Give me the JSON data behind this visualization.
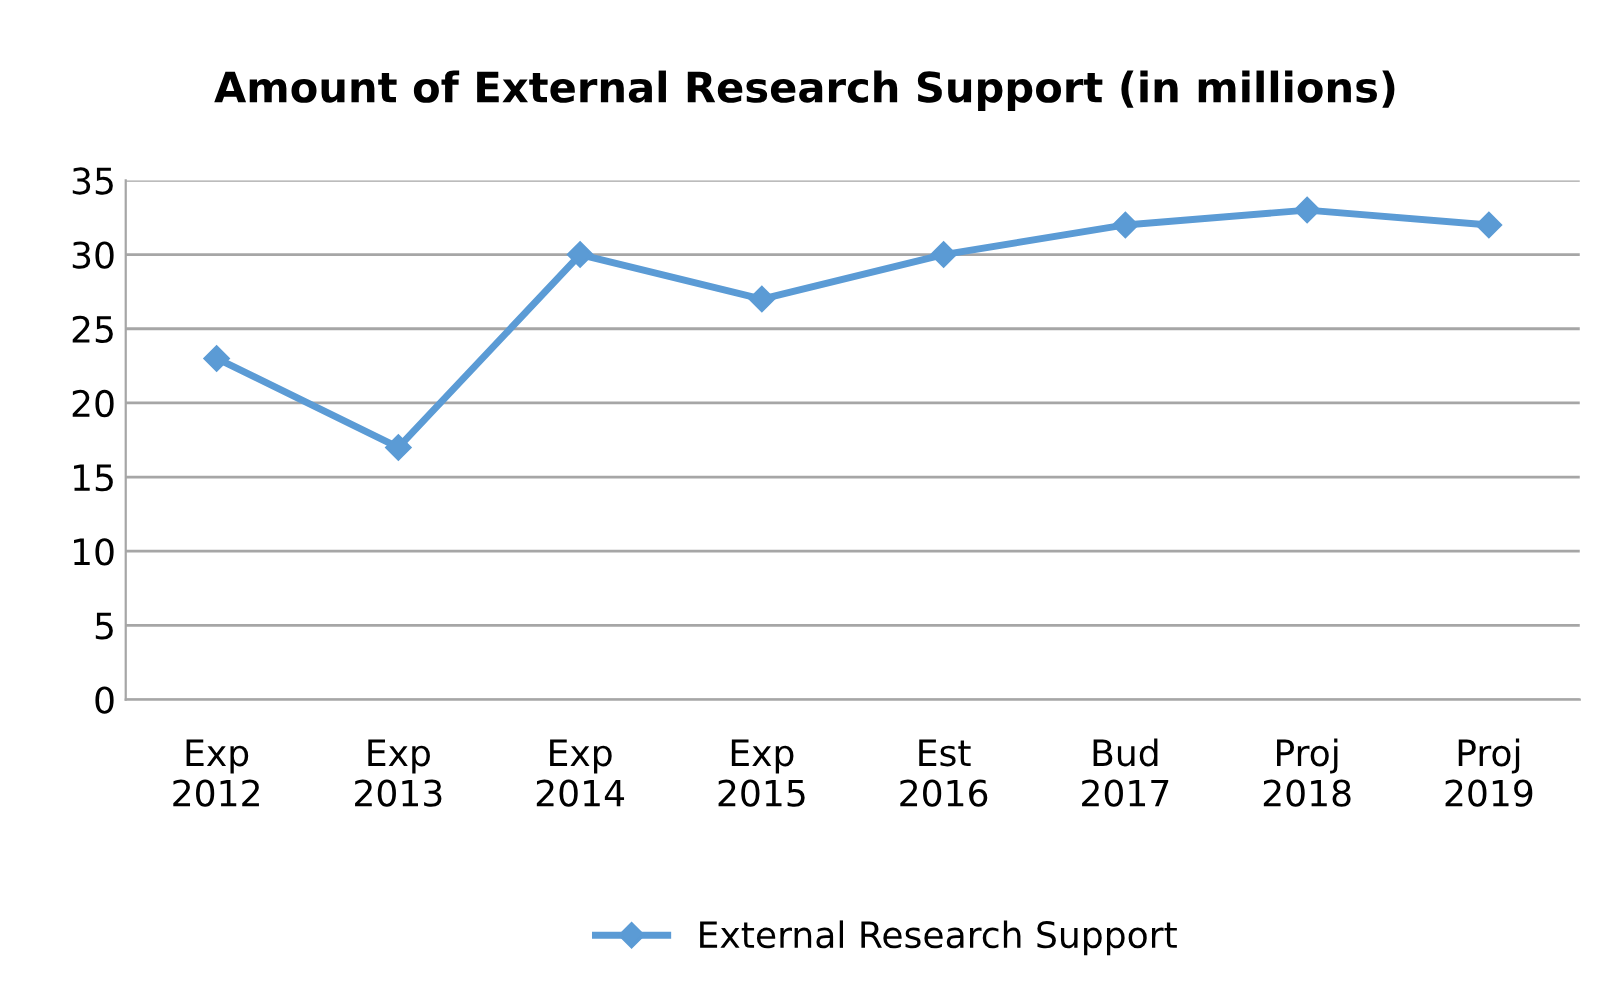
{
  "chart_data": {
    "type": "line",
    "title": "Amount of External Research Support (in millions)",
    "categories": [
      "Exp\n2012",
      "Exp\n2013",
      "Exp\n2014",
      "Exp\n2015",
      "Est\n2016",
      "Bud\n2017",
      "Proj\n2018",
      "Proj\n2019"
    ],
    "series": [
      {
        "name": "External Research Support",
        "color": "#5b9bd5",
        "values": [
          23,
          17,
          30,
          27,
          30,
          32,
          33,
          32
        ]
      }
    ],
    "ylim": [
      0,
      35
    ],
    "yticks": [
      0,
      5,
      10,
      15,
      20,
      25,
      30,
      35
    ],
    "grid": "y",
    "legend": "bottom",
    "marker": "diamond",
    "line_style": "solid"
  }
}
